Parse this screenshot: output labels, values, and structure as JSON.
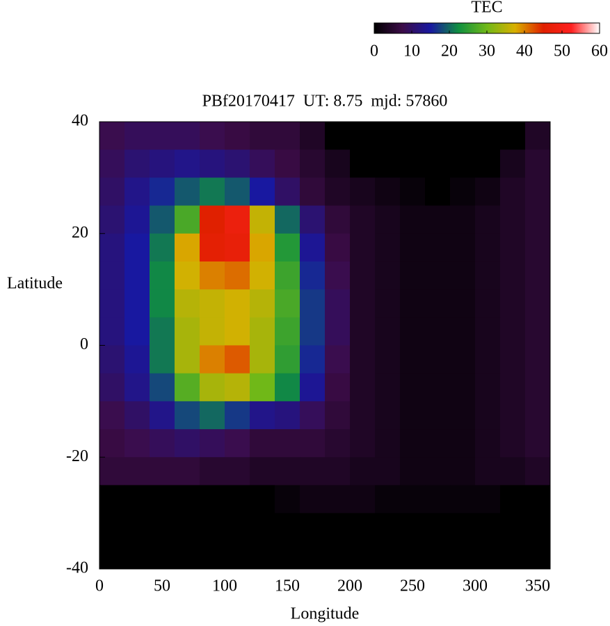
{
  "chart_data": {
    "type": "heatmap",
    "title": "PBf20170417  UT: 8.75  mjd: 57860",
    "x_label": "Longitude",
    "y_label": "Latitude",
    "colorbar_label": "TEC",
    "x": [
      10,
      30,
      50,
      70,
      90,
      110,
      130,
      150,
      170,
      190,
      210,
      230,
      250,
      270,
      290,
      310,
      330,
      350
    ],
    "y": [
      37.5,
      32.5,
      27.5,
      22.5,
      17.5,
      12.5,
      7.5,
      2.5,
      -2.5,
      -7.5,
      -12.5,
      -17.5,
      -22.5,
      -27.5,
      -32.5,
      -37.5
    ],
    "z": [
      [
        8,
        9,
        9,
        9,
        8,
        7,
        6,
        6,
        4,
        0,
        0,
        0,
        0,
        0,
        0,
        0,
        0,
        4
      ],
      [
        9,
        11,
        12,
        13,
        12,
        11,
        9,
        7,
        5,
        3,
        0,
        0,
        0,
        0,
        0,
        0,
        3,
        5
      ],
      [
        10,
        13,
        16,
        19,
        21,
        19,
        15,
        10,
        6,
        4,
        3,
        2,
        1,
        0,
        1,
        2,
        4,
        5
      ],
      [
        11,
        14,
        19,
        27,
        45,
        48,
        36,
        20,
        11,
        6,
        4,
        3,
        2,
        2,
        2,
        3,
        4,
        5
      ],
      [
        12,
        15,
        21,
        38,
        46,
        47,
        38,
        24,
        14,
        7,
        4,
        3,
        2,
        2,
        2,
        3,
        4,
        5
      ],
      [
        12,
        15,
        22,
        37,
        40,
        41,
        37,
        26,
        16,
        8,
        4,
        3,
        2,
        2,
        2,
        3,
        4,
        5
      ],
      [
        12,
        15,
        22,
        35,
        36,
        37,
        35,
        27,
        17,
        9,
        4,
        3,
        2,
        2,
        2,
        3,
        4,
        5
      ],
      [
        12,
        15,
        21,
        34,
        36,
        37,
        34,
        26,
        17,
        9,
        4,
        3,
        2,
        2,
        2,
        3,
        4,
        5
      ],
      [
        11,
        14,
        21,
        34,
        40,
        42,
        34,
        25,
        16,
        8,
        4,
        3,
        2,
        2,
        2,
        3,
        4,
        5
      ],
      [
        10,
        13,
        18,
        28,
        34,
        35,
        30,
        22,
        14,
        7,
        4,
        3,
        2,
        2,
        2,
        3,
        4,
        5
      ],
      [
        8,
        10,
        13,
        18,
        20,
        17,
        13,
        12,
        9,
        6,
        4,
        3,
        2,
        2,
        2,
        3,
        4,
        5
      ],
      [
        7,
        8,
        9,
        10,
        9,
        8,
        6,
        6,
        6,
        5,
        4,
        3,
        2,
        2,
        2,
        3,
        4,
        5
      ],
      [
        6,
        6,
        6,
        6,
        5,
        5,
        4,
        4,
        4,
        4,
        3,
        3,
        2,
        2,
        2,
        3,
        3,
        4
      ],
      [
        0,
        0,
        0,
        0,
        0,
        0,
        0,
        1,
        2,
        2,
        2,
        1,
        1,
        1,
        1,
        1,
        0,
        0
      ],
      [
        0,
        0,
        0,
        0,
        0,
        0,
        0,
        0,
        0,
        0,
        0,
        0,
        0,
        0,
        0,
        0,
        0,
        0
      ],
      [
        0,
        0,
        0,
        0,
        0,
        0,
        0,
        0,
        0,
        0,
        0,
        0,
        0,
        0,
        0,
        0,
        0,
        0
      ]
    ],
    "xlim": [
      0,
      360
    ],
    "ylim": [
      -40,
      40
    ],
    "xticks": [
      0,
      50,
      100,
      150,
      200,
      250,
      300,
      350
    ],
    "yticks": [
      -40,
      -20,
      0,
      20,
      40
    ],
    "zlim": [
      0,
      60
    ],
    "colorbar_ticks": [
      0,
      10,
      20,
      30,
      40,
      50,
      60
    ],
    "colormap": [
      "#000000",
      "#3c0c48",
      "#1818a0",
      "#109040",
      "#70b818",
      "#d8b000",
      "#e02000",
      "#ff2020",
      "#ffffff"
    ]
  }
}
